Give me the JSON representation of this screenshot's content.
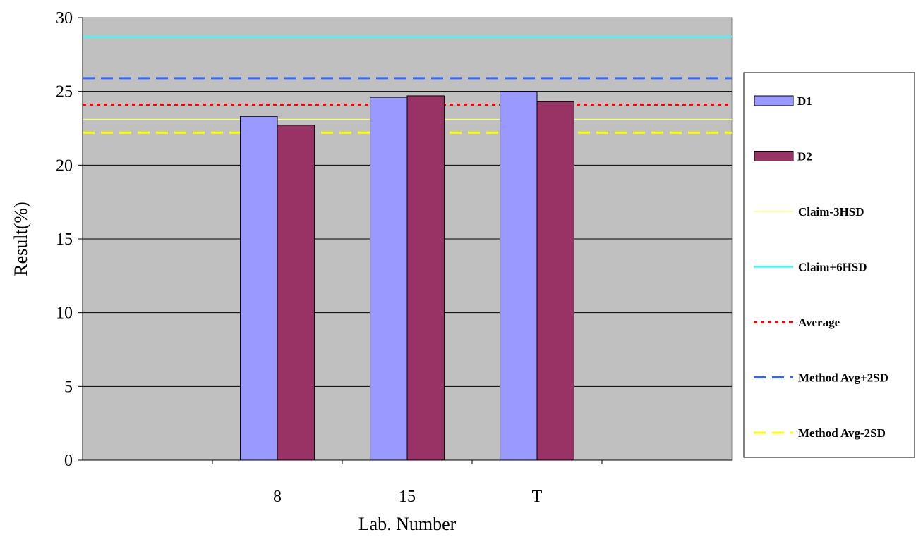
{
  "chart_data": {
    "type": "bar",
    "title": "",
    "xlabel": "Lab. Number",
    "ylabel": "Result(%)",
    "ylim": [
      0,
      30
    ],
    "yticks": [
      0,
      5,
      10,
      15,
      20,
      25,
      30
    ],
    "grid": true,
    "background_color": "#C0C0C0",
    "legend_position": "right",
    "x_slots": [
      "",
      "8",
      "15",
      "T",
      ""
    ],
    "categories": [
      "8",
      "15",
      "T"
    ],
    "series": [
      {
        "name": "D1",
        "values": [
          23.3,
          24.6,
          25.0
        ],
        "color": "#9999FF"
      },
      {
        "name": "D2",
        "values": [
          22.7,
          24.7,
          24.3
        ],
        "color": "#993366"
      }
    ],
    "reference_lines": [
      {
        "name": "Claim-3HSD",
        "value": 23.1,
        "color": "#FFFF66",
        "style": "solid-thin"
      },
      {
        "name": "Claim+6HSD",
        "value": 28.7,
        "color": "#33FFFF",
        "style": "solid"
      },
      {
        "name": "Average",
        "value": 24.1,
        "color": "#FF0000",
        "style": "dotted"
      },
      {
        "name": "Method Avg+2SD",
        "value": 25.9,
        "color": "#3366FF",
        "style": "dashed"
      },
      {
        "name": "Method Avg-2SD",
        "value": 22.2,
        "color": "#FFFF00",
        "style": "dashed"
      }
    ]
  }
}
